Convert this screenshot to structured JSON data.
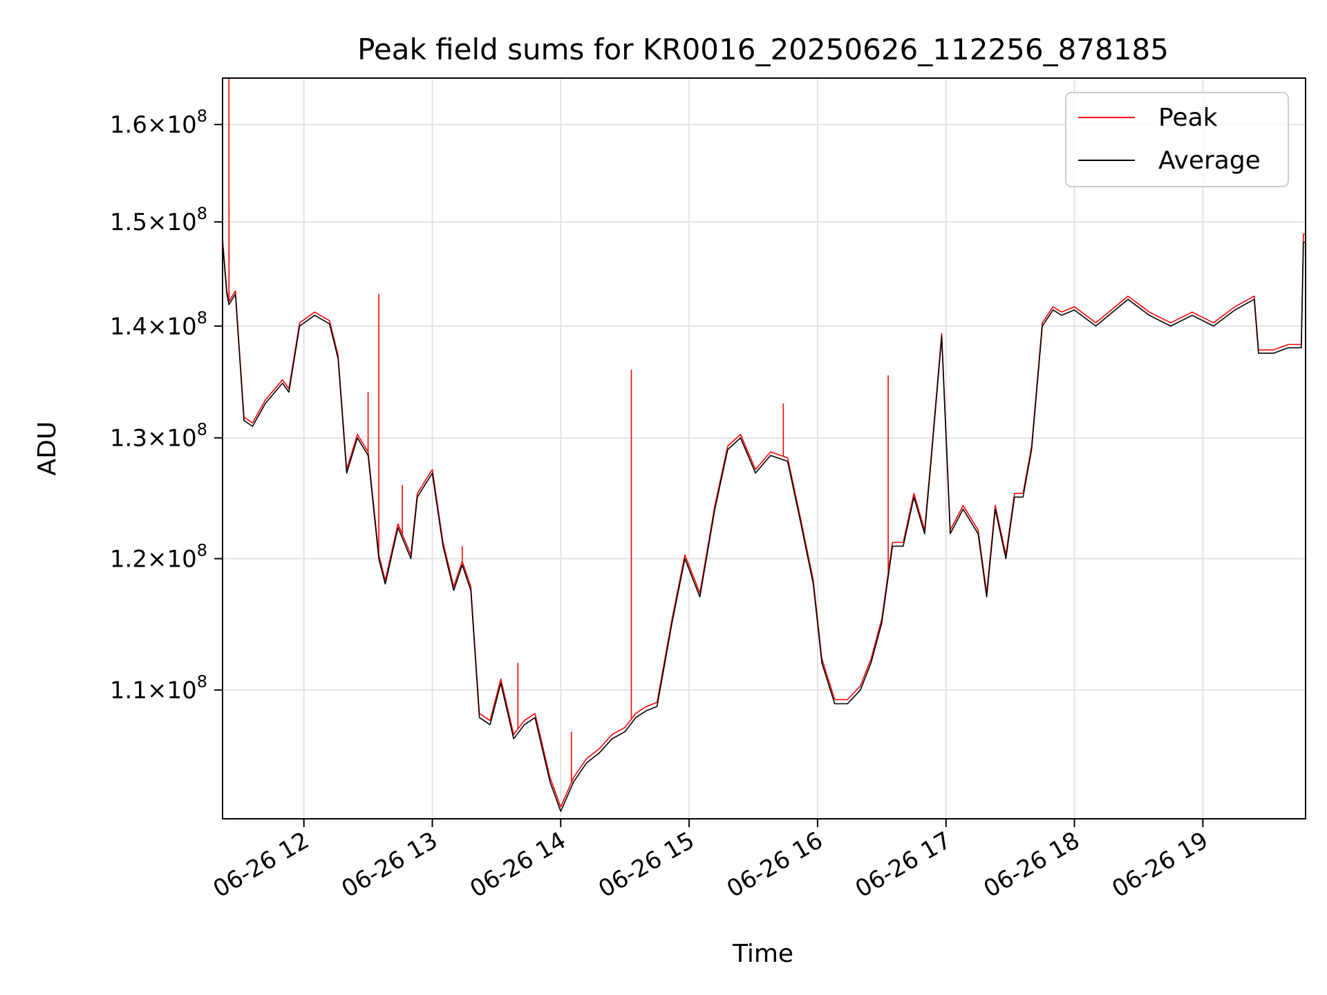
{
  "chart_data": {
    "type": "line",
    "title": "Peak field sums for KR0016_20250626_112256_878185",
    "xlabel": "Time",
    "ylabel": "ADU",
    "yscale": "log",
    "grid": true,
    "legend_position": "top-right",
    "xlim": [
      "06-26 11:22",
      "06-26 19:48"
    ],
    "ylim": [
      101000000.0,
      165000000.0
    ],
    "x_ticks": [
      "06-26 12",
      "06-26 13",
      "06-26 14",
      "06-26 15",
      "06-26 16",
      "06-26 17",
      "06-26 18",
      "06-26 19"
    ],
    "y_ticks": [
      {
        "value": 110000000.0,
        "mantissa": "1.1",
        "base": "10",
        "exp": "8"
      },
      {
        "value": 120000000.0,
        "mantissa": "1.2",
        "base": "10",
        "exp": "8"
      },
      {
        "value": 130000000.0,
        "mantissa": "1.3",
        "base": "10",
        "exp": "8"
      },
      {
        "value": 140000000.0,
        "mantissa": "1.4",
        "base": "10",
        "exp": "8"
      },
      {
        "value": 150000000.0,
        "mantissa": "1.5",
        "base": "10",
        "exp": "8"
      },
      {
        "value": 160000000.0,
        "mantissa": "1.6",
        "base": "10",
        "exp": "8"
      }
    ],
    "x": [
      "11:22",
      "11:24",
      "11:25",
      "11:28",
      "11:32",
      "11:36",
      "11:42",
      "11:50",
      "11:53",
      "11:58",
      "12:05",
      "12:12",
      "12:16",
      "12:20",
      "12:25",
      "12:30",
      "12:35",
      "12:38",
      "12:44",
      "12:50",
      "12:53",
      "13:00",
      "13:05",
      "13:10",
      "13:14",
      "13:18",
      "13:22",
      "13:27",
      "13:32",
      "13:38",
      "13:43",
      "13:48",
      "13:55",
      "14:00",
      "14:06",
      "14:12",
      "14:18",
      "14:24",
      "14:30",
      "14:35",
      "14:40",
      "14:45",
      "14:52",
      "14:58",
      "15:05",
      "15:12",
      "15:18",
      "15:24",
      "15:31",
      "15:38",
      "15:46",
      "15:52",
      "15:58",
      "16:02",
      "16:08",
      "16:14",
      "16:20",
      "16:25",
      "16:30",
      "16:35",
      "16:40",
      "16:45",
      "16:50",
      "16:53",
      "16:58",
      "17:02",
      "17:08",
      "17:15",
      "17:19",
      "17:23",
      "17:28",
      "17:32",
      "17:36",
      "17:40",
      "17:45",
      "17:50",
      "17:54",
      "18:00",
      "18:10",
      "18:25",
      "18:35",
      "18:45",
      "18:55",
      "19:05",
      "19:15",
      "19:24",
      "19:26",
      "19:33",
      "19:40",
      "19:46",
      "19:47",
      "19:48"
    ],
    "series": [
      {
        "name": "Average",
        "color": "#000000",
        "values": [
          148000000,
          143000000,
          142000000,
          143000000,
          131500000,
          131000000,
          133000000,
          134800000,
          134000000,
          140000000,
          141000000,
          140200000,
          137000000,
          127000000,
          130000000,
          128500000,
          120000000,
          118000000,
          122500000,
          120000000,
          125000000,
          127000000,
          121000000,
          117500000,
          119500000,
          117500000,
          108000000,
          107500000,
          110500000,
          106500000,
          107500000,
          108000000,
          103500000,
          101500000,
          103500000,
          104800000,
          105500000,
          106500000,
          107000000,
          108000000,
          108500000,
          108800000,
          115000000,
          120000000,
          117000000,
          124000000,
          129000000,
          130000000,
          127000000,
          128500000,
          128000000,
          123000000,
          118000000,
          112000000,
          109000000,
          109000000,
          110000000,
          112000000,
          115000000,
          121000000,
          121000000,
          125000000,
          122000000,
          128000000,
          139000000,
          122000000,
          124000000,
          122000000,
          117000000,
          124000000,
          120000000,
          125000000,
          125000000,
          129000000,
          140000000,
          141500000,
          141000000,
          141500000,
          140000000,
          142500000,
          141000000,
          140000000,
          141000000,
          140000000,
          141500000,
          142500000,
          137500000,
          137500000,
          138000000,
          138000000,
          148000000,
          148000000
        ]
      },
      {
        "name": "Peak",
        "color": "#ff0000",
        "values": [
          148300000,
          143300000,
          142300000,
          143300000,
          131800000,
          131300000,
          133300000,
          135100000,
          134300000,
          140300000,
          141300000,
          140500000,
          137300000,
          127300000,
          130300000,
          128800000,
          120300000,
          118300000,
          122800000,
          120300000,
          125300000,
          127300000,
          121300000,
          117800000,
          119800000,
          117800000,
          108300000,
          107800000,
          110800000,
          106800000,
          107800000,
          108300000,
          103800000,
          101800000,
          103800000,
          105100000,
          105800000,
          106800000,
          107300000,
          108300000,
          108800000,
          109100000,
          115300000,
          120300000,
          117300000,
          124300000,
          129300000,
          130300000,
          127300000,
          128800000,
          128300000,
          123300000,
          118300000,
          112300000,
          109300000,
          109300000,
          110300000,
          112300000,
          115300000,
          121300000,
          121300000,
          125300000,
          122300000,
          128300000,
          139300000,
          122300000,
          124300000,
          122300000,
          117300000,
          124300000,
          120300000,
          125300000,
          125300000,
          129300000,
          140300000,
          141800000,
          141300000,
          141800000,
          140300000,
          142800000,
          141300000,
          140300000,
          141300000,
          140300000,
          141800000,
          142800000,
          137800000,
          137800000,
          138300000,
          138300000,
          148800000,
          148800000
        ],
        "spikes": [
          {
            "x": "11:25",
            "value": 165000000
          },
          {
            "x": "11:25",
            "value": 152000000
          },
          {
            "x": "12:35",
            "value": 143000000
          },
          {
            "x": "12:30",
            "value": 134000000
          },
          {
            "x": "14:33",
            "value": 136000000
          },
          {
            "x": "15:44",
            "value": 133000000
          },
          {
            "x": "16:33",
            "value": 135500000
          },
          {
            "x": "13:40",
            "value": 112000000
          },
          {
            "x": "14:05",
            "value": 107000000
          },
          {
            "x": "12:46",
            "value": 126000000
          },
          {
            "x": "13:14",
            "value": 121000000
          }
        ]
      }
    ]
  }
}
